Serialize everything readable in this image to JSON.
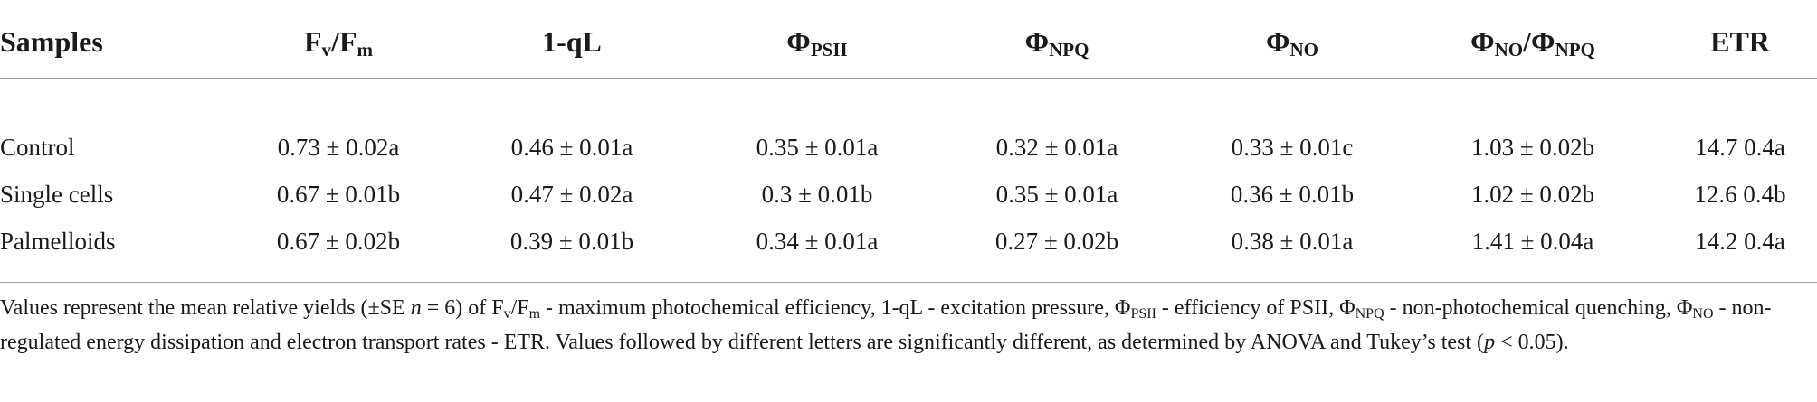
{
  "table": {
    "headers": {
      "samples": "Samples",
      "fvfm": {
        "base1": "F",
        "sub1": "v",
        "sep": "/F",
        "sub2": "m"
      },
      "qL": "1-qL",
      "psii": {
        "base": "Φ",
        "sub": "PSII"
      },
      "npq": {
        "base": "Φ",
        "sub": "NPQ"
      },
      "no": {
        "base": "Φ",
        "sub": "NO"
      },
      "ratio": {
        "base1": "Φ",
        "sub1": "NO",
        "sep": "/Φ",
        "sub2": "NPQ"
      },
      "etr": "ETR"
    },
    "rows": [
      {
        "sample": "Control",
        "fvfm": "0.73 ± 0.02a",
        "qL": "0.46 ± 0.01a",
        "psii": "0.35 ± 0.01a",
        "npq": "0.32 ± 0.01a",
        "no": "0.33 ± 0.01c",
        "ratio": "1.03 ± 0.02b",
        "etr": "14.7 0.4a"
      },
      {
        "sample": "Single cells",
        "fvfm": "0.67 ± 0.01b",
        "qL": "0.47 ± 0.02a",
        "psii": "0.3 ± 0.01b",
        "npq": "0.35 ± 0.01a",
        "no": "0.36 ± 0.01b",
        "ratio": "1.02 ± 0.02b",
        "etr": "12.6 0.4b"
      },
      {
        "sample": "Palmelloids",
        "fvfm": "0.67 ± 0.02b",
        "qL": "0.39 ± 0.01b",
        "psii": "0.34 ± 0.01a",
        "npq": "0.27 ± 0.02b",
        "no": "0.38 ± 0.01a",
        "ratio": "1.41 ± 0.04a",
        "etr": "14.2 0.4a"
      }
    ]
  },
  "footnote": {
    "p1": "Values represent the mean relative yields (±SE ",
    "n": "n",
    "p2": " = 6) of F",
    "s1": "v",
    "p3": "/F",
    "s2": "m",
    "p4": " - maximum photochemical efficiency, 1-qL - excitation pressure, Φ",
    "s3": "PSII",
    "p5": " - efficiency of PSII, Φ",
    "s4": "NPQ",
    "p6": " - non-photochemical quenching, Φ",
    "s5": "NO",
    "p7": " - non-regulated energy dissipation and electron transport rates - ETR. Values followed by different letters are significantly different, as determined by ANOVA and Tukey’s test (",
    "p": "p",
    "p8": " < 0.05)."
  }
}
